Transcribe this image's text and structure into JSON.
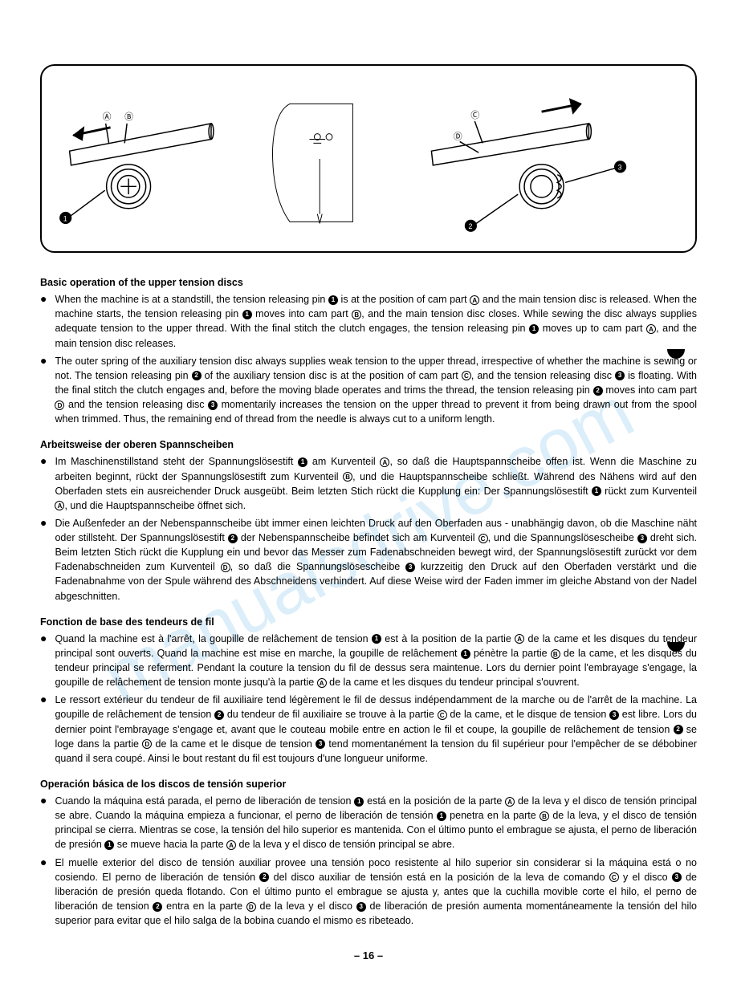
{
  "watermark_text": "manualsdrive.com",
  "page_number": "– 16 –",
  "diagram": {
    "labels": {
      "A": "A",
      "B": "B",
      "C": "C",
      "D": "D",
      "n1": "1",
      "n2": "2",
      "n3": "3"
    }
  },
  "sections": [
    {
      "title": "Basic operation of the upper tension discs",
      "bullets": [
        "When the machine is at a standstill, the tension releasing pin ❶ is at the position of cam part Ⓐ and the main tension disc is released. When the machine starts, the tension releasing pin ❶ moves into cam part Ⓑ, and the main tension disc closes. While sewing the disc always supplies adequate tension to the upper thread. With the final stitch the clutch engages, the tension releasing pin ❶ moves up to cam part Ⓐ, and the main tension disc releases.",
        "The outer spring of the auxiliary tension disc always supplies weak tension to the upper thread, irrespective of whether the machine is sewing or not. The tension releasing pin ❷ of the auxiliary tension disc is at the position of cam part Ⓒ, and the tension releasing disc ❸ is floating. With the final stitch the clutch engages and, before the moving blade operates and trims the thread, the tension releasing pin ❷ moves into cam part Ⓓ and the tension releasing disc ❸ momentarily increases the tension on the upper thread to prevent it from being drawn out from the spool when trimmed. Thus, the remaining end of thread from the needle is always cut to a uniform length."
      ]
    },
    {
      "title": "Arbeitsweise der oberen Spannscheiben",
      "bullets": [
        "Im Maschinenstillstand steht der Spannungslösestift ❶ am Kurventeil Ⓐ, so daß die Hauptspannscheibe offen ist. Wenn die Maschine zu arbeiten beginnt, rückt der Spannungslösestift zum Kurventeil Ⓑ, und die Hauptspannscheibe schließt. Während des Nähens wird auf den Oberfaden stets ein ausreichender Druck ausgeübt. Beim letzten Stich rückt die Kupplung ein: Der Spannungslösestift ❶ rückt zum Kurventeil Ⓐ, und die Hauptspannscheibe öffnet sich.",
        "Die Außenfeder an der Nebenspannscheibe übt immer einen leichten Druck auf den Oberfaden aus - unabhängig davon, ob die Maschine näht oder stillsteht. Der Spannungslösestift ❷ der Nebenspannscheibe befindet sich am Kurventeil Ⓒ, und die Spannungslösescheibe ❸ dreht sich. Beim letzten Stich rückt die Kupplung ein und bevor das Messer zum Fadenabschneiden bewegt wird, der Spannungslösestift zurückt vor dem Fadenabschneiden zum Kurventeil Ⓓ, so daß die Spannungslösescheibe ❸ kurzzeitig den Druck auf den Oberfaden verstärkt und die Fadenabnahme von der Spule während des Abschneidens verhindert. Auf diese Weise wird der Faden immer im gleiche Abstand von der Nadel abgeschnitten."
      ]
    },
    {
      "title": "Fonction de base des tendeurs de fil",
      "bullets": [
        "Quand la machine est à l'arrêt, la goupille de relâchement de tension ❶ est à la position de la partie Ⓐ de la came et les disques du tendeur principal sont ouverts. Quand la machine est mise en marche, la goupille de relâchement ❶ pénètre la partie Ⓑ de la came, et les disques du tendeur principal se referment. Pendant la couture la tension du fil de dessus sera maintenue. Lors du dernier point l'embrayage s'engage, la goupille de relâchement de tension monte jusqu'à la partie Ⓐ de la came et les disques du tendeur principal s'ouvrent.",
        "Le ressort extérieur du tendeur de fil auxiliaire tend légèrement le fil de dessus indépendamment de la marche ou de l'arrêt de la machine. La goupille de relâchement de tension ❷ du tendeur de fil auxiliaire se trouve à la partie Ⓒ de la came, et le disque de tension ❸ est libre. Lors du dernier point l'embrayage s'engage et, avant que le couteau mobile entre en action le fil et coupe, la goupille de relâchement de tension ❷ se loge dans la partie Ⓓ de la came et le disque de tension ❸ tend momentanément la tension du fil supérieur pour l'empêcher de se débobiner quand il sera coupé. Ainsi le bout restant du fil est toujours d'une longueur uniforme."
      ]
    },
    {
      "title": "Operación básica de los discos de tensión superior",
      "bullets": [
        "Cuando la máquina está parada, el perno de liberación de tension ❶ está en la posición de la parte Ⓐ de la leva y el disco de tensión principal se abre. Cuando la máquina empieza a funcionar, el perno de liberación de tensión ❶ penetra en la parte Ⓑ de la leva, y el disco de tensión principal se cierra. Mientras se cose, la tensión del hilo superior es mantenida. Con el último punto el embrague se ajusta, el perno de liberación de presión ❶ se mueve hacia la parte Ⓐ de la leva y el disco de tensión principal se abre.",
        "El muelle exterior del disco de tensión auxiliar provee una tensión poco resistente al hilo superior sin considerar si la máquina está o no cosiendo. El perno de liberación de tensión ❷ del disco auxiliar de tensión está en la posición de la leva de comando Ⓒ y el disco ❸ de liberación de presión queda flotando. Con el último punto el embrague se ajusta y, antes que la cuchilla movible corte el hilo, el perno de liberación de tension ❷ entra en la parte Ⓓ de la leva y el disco ❸ de liberación de presión aumenta momentáneamente la tensión del hilo superior para evitar que el hilo salga de la bobina cuando el mismo es ribeteado."
      ]
    }
  ]
}
